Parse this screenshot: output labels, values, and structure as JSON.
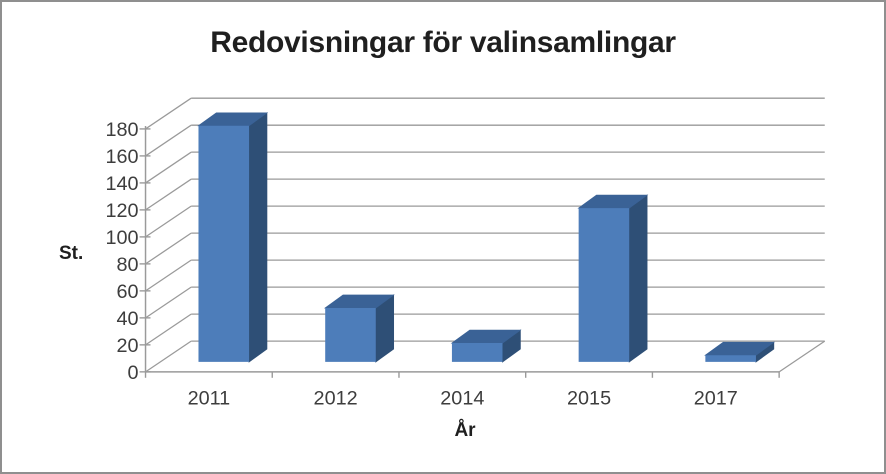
{
  "frame": {
    "background": "#ffffff",
    "border_color": "#8f8f8f"
  },
  "chart_data": {
    "type": "bar",
    "subtype": "3d-column",
    "title": "Redovisningar för valinsamlingar",
    "categories": [
      "2011",
      "2012",
      "2014",
      "2015",
      "2017"
    ],
    "values": [
      175,
      40,
      14,
      114,
      5
    ],
    "series": [
      {
        "name": "Redovisningar",
        "values": [
          175,
          40,
          14,
          114,
          5
        ]
      }
    ],
    "xlabel": "År",
    "ylabel": "St.",
    "ylim": [
      0,
      180
    ],
    "ytick_step": 20,
    "y_ticks": [
      0,
      20,
      40,
      60,
      80,
      100,
      120,
      140,
      160,
      180
    ],
    "grid": true,
    "legend": false,
    "colors": {
      "bar_front": "#4d7dba",
      "bar_top": "#3a6296",
      "bar_side": "#2e4f76",
      "gridline": "#9a9a9a",
      "axis_text": "#3d3d3d",
      "title_text": "#1f1f1f"
    }
  }
}
